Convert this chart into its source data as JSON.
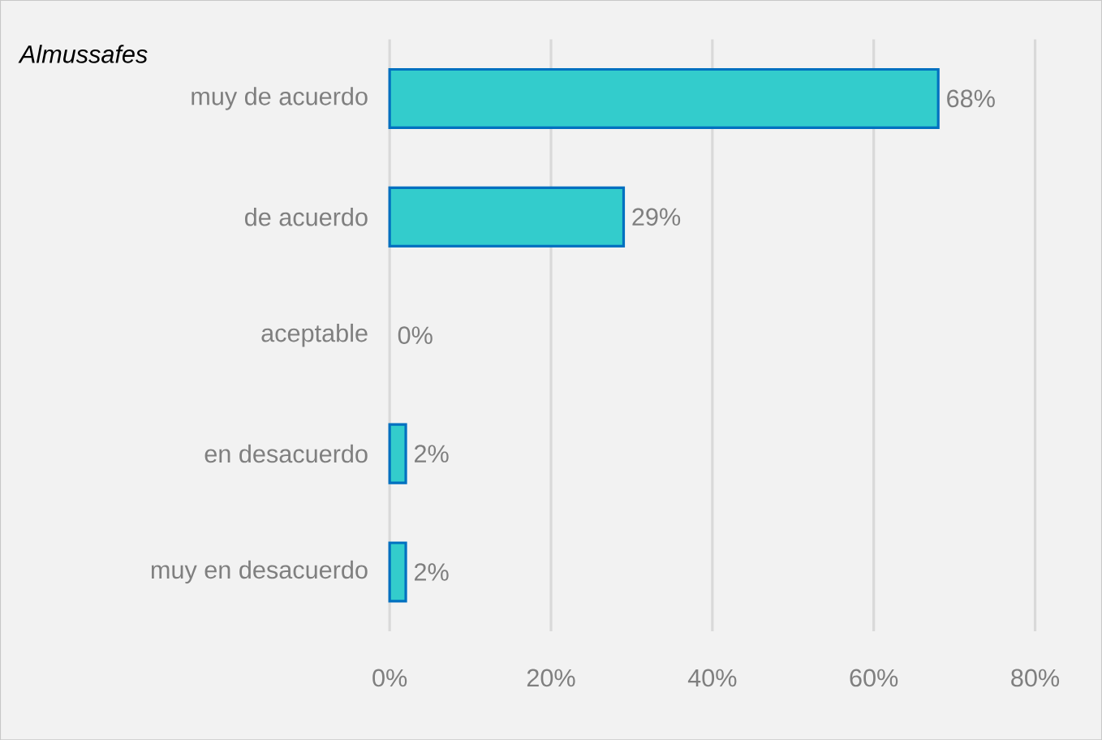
{
  "chart_data": {
    "type": "bar",
    "orientation": "horizontal",
    "title": "Almussafes",
    "categories": [
      "muy de acuerdo",
      "de acuerdo",
      "aceptable",
      "en desacuerdo",
      "muy en desacuerdo"
    ],
    "values": [
      68,
      29,
      0,
      2,
      2
    ],
    "value_labels": [
      "68%",
      "29%",
      "0%",
      "2%",
      "2%"
    ],
    "color": "#33cccc",
    "xlim": [
      0,
      80
    ],
    "xticks": [
      {
        "value": 0,
        "label": "0%"
      },
      {
        "value": 20,
        "label": "20%"
      },
      {
        "value": 40,
        "label": "40%"
      },
      {
        "value": 60,
        "label": "60%"
      },
      {
        "value": 80,
        "label": "80%"
      }
    ],
    "grid": "x"
  }
}
